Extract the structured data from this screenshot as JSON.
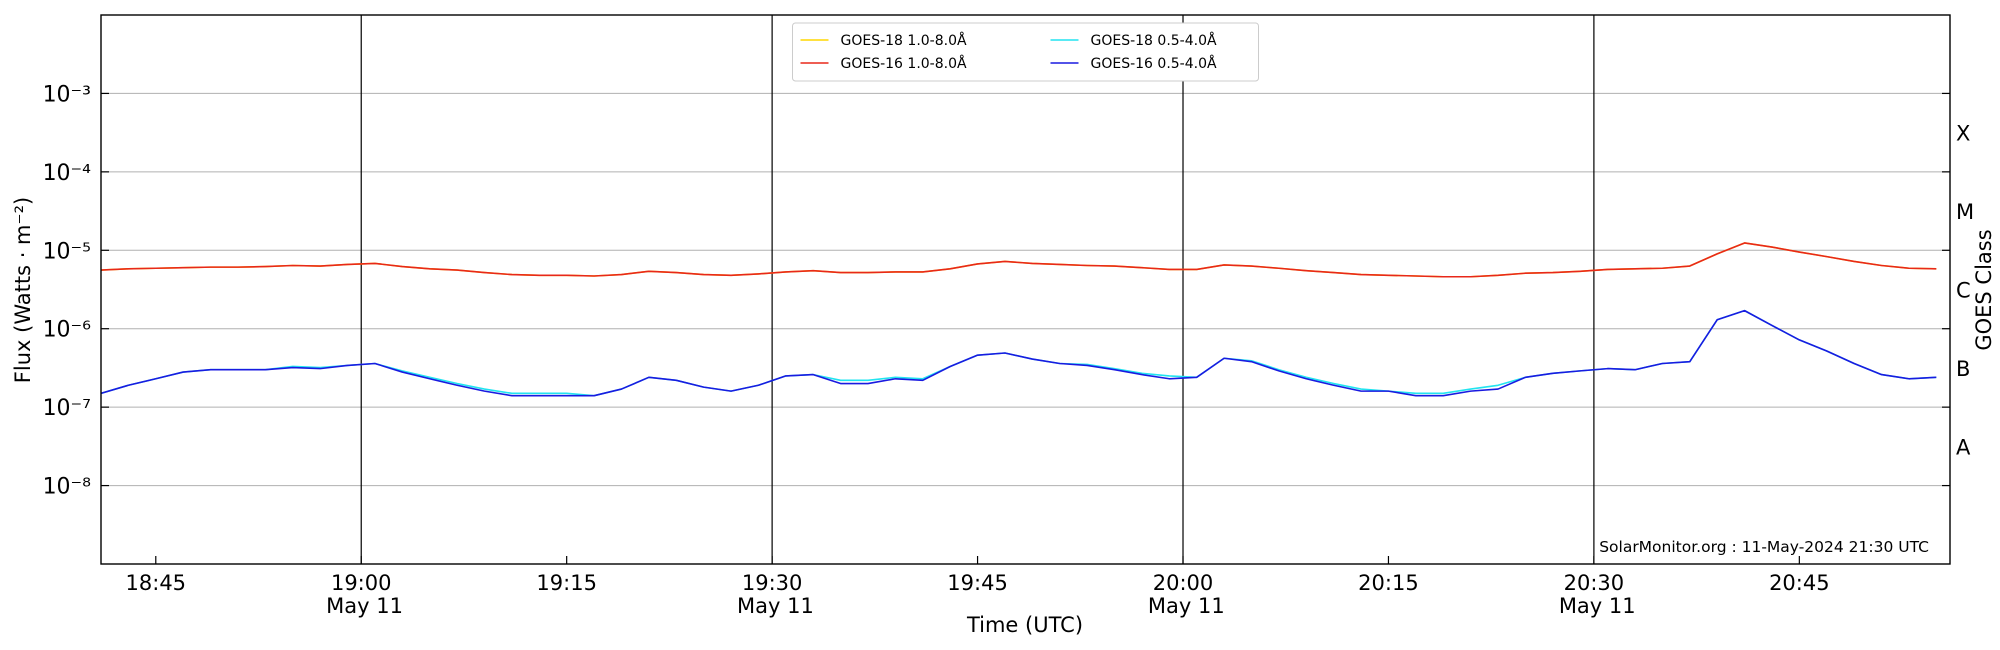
{
  "chart_data": {
    "type": "line",
    "log_scale": true,
    "grid": true,
    "xlabel": "Time (UTC)",
    "ylabel": "Flux (Watts · m⁻²)",
    "y2label": "GOES Class",
    "annotation": "SolarMonitor.org : 11-May-2024 21:30 UTC",
    "legend": "upper center",
    "legend_columns": 2,
    "xlim": [
      "18:41",
      "20:56"
    ],
    "xticks": [
      "18:45",
      {
        "value": "19:00",
        "label": "19:00\nMay 11"
      },
      "19:15",
      {
        "value": "19:30",
        "label": "19:30\nMay 11"
      },
      "19:45",
      {
        "value": "20:00",
        "label": "20:00\nMay 11"
      },
      "20:15",
      {
        "value": "20:30",
        "label": "20:30\nMay 11"
      },
      "20:45"
    ],
    "vlines": [
      "19:00",
      "19:30",
      "20:00",
      "20:30"
    ],
    "ylim": [
      1e-09,
      0.01
    ],
    "yticks": [
      {
        "value": 1e-08,
        "label": "10⁻⁸"
      },
      {
        "value": 1e-07,
        "label": "10⁻⁷"
      },
      {
        "value": 1e-06,
        "label": "10⁻⁶"
      },
      {
        "value": 1e-05,
        "label": "10⁻⁵"
      },
      {
        "value": 0.0001,
        "label": "10⁻⁴"
      },
      {
        "value": 0.001,
        "label": "10⁻³"
      }
    ],
    "goes_classes": [
      {
        "label": "A",
        "value": 1e-08
      },
      {
        "label": "B",
        "value": 1e-07
      },
      {
        "label": "C",
        "value": 1e-06
      },
      {
        "label": "M",
        "value": 1e-05
      },
      {
        "label": "X",
        "value": 0.0001
      }
    ],
    "x": [
      "18:41",
      "18:43",
      "18:45",
      "18:47",
      "18:49",
      "18:51",
      "18:53",
      "18:55",
      "18:57",
      "18:59",
      "19:01",
      "19:03",
      "19:05",
      "19:07",
      "19:09",
      "19:11",
      "19:13",
      "19:15",
      "19:17",
      "19:19",
      "19:21",
      "19:23",
      "19:25",
      "19:27",
      "19:29",
      "19:31",
      "19:33",
      "19:35",
      "19:37",
      "19:39",
      "19:41",
      "19:43",
      "19:45",
      "19:47",
      "19:49",
      "19:51",
      "19:53",
      "19:55",
      "19:57",
      "19:59",
      "20:01",
      "20:03",
      "20:05",
      "20:07",
      "20:09",
      "20:11",
      "20:13",
      "20:15",
      "20:17",
      "20:19",
      "20:21",
      "20:23",
      "20:25",
      "20:27",
      "20:29",
      "20:31",
      "20:33",
      "20:35",
      "20:37",
      "20:39",
      "20:41",
      "20:43",
      "20:45",
      "20:47",
      "20:49",
      "20:51",
      "20:53",
      "20:55"
    ],
    "series": [
      {
        "name": "GOES-18 1.0-8.0Å",
        "color": "#ffd700",
        "values": [
          5.6e-06,
          5.8e-06,
          5.9e-06,
          6e-06,
          6.1e-06,
          6.1e-06,
          6.2e-06,
          6.4e-06,
          6.3e-06,
          6.6e-06,
          6.8e-06,
          6.2e-06,
          5.8e-06,
          5.6e-06,
          5.2e-06,
          4.9e-06,
          4.8e-06,
          4.8e-06,
          4.7e-06,
          4.9e-06,
          5.4e-06,
          5.2e-06,
          4.9e-06,
          4.8e-06,
          5e-06,
          5.3e-06,
          5.5e-06,
          5.2e-06,
          5.2e-06,
          5.3e-06,
          5.3e-06,
          5.8e-06,
          6.7e-06,
          7.2e-06,
          6.8e-06,
          6.6e-06,
          6.4e-06,
          6.3e-06,
          6e-06,
          5.7e-06,
          5.7e-06,
          6.5e-06,
          6.3e-06,
          5.9e-06,
          5.5e-06,
          5.2e-06,
          4.9e-06,
          4.8e-06,
          4.7e-06,
          4.6e-06,
          4.6e-06,
          4.8e-06,
          5.1e-06,
          5.2e-06,
          5.4e-06,
          5.7e-06,
          5.8e-06,
          5.9e-06,
          6.3e-06,
          9e-06,
          1.24e-05,
          1.1e-05,
          9.5e-06,
          8.3e-06,
          7.2e-06,
          6.4e-06,
          5.9e-06,
          5.8e-06
        ]
      },
      {
        "name": "GOES-16 1.0-8.0Å",
        "color": "#e8281a",
        "values": [
          5.6e-06,
          5.8e-06,
          5.9e-06,
          6e-06,
          6.1e-06,
          6.1e-06,
          6.2e-06,
          6.4e-06,
          6.3e-06,
          6.6e-06,
          6.8e-06,
          6.2e-06,
          5.8e-06,
          5.6e-06,
          5.2e-06,
          4.9e-06,
          4.8e-06,
          4.8e-06,
          4.7e-06,
          4.9e-06,
          5.4e-06,
          5.2e-06,
          4.9e-06,
          4.8e-06,
          5e-06,
          5.3e-06,
          5.5e-06,
          5.2e-06,
          5.2e-06,
          5.3e-06,
          5.3e-06,
          5.8e-06,
          6.7e-06,
          7.2e-06,
          6.8e-06,
          6.6e-06,
          6.4e-06,
          6.3e-06,
          6e-06,
          5.7e-06,
          5.7e-06,
          6.5e-06,
          6.3e-06,
          5.9e-06,
          5.5e-06,
          5.2e-06,
          4.9e-06,
          4.8e-06,
          4.7e-06,
          4.6e-06,
          4.6e-06,
          4.8e-06,
          5.1e-06,
          5.2e-06,
          5.4e-06,
          5.7e-06,
          5.8e-06,
          5.9e-06,
          6.3e-06,
          9e-06,
          1.24e-05,
          1.1e-05,
          9.5e-06,
          8.3e-06,
          7.2e-06,
          6.4e-06,
          5.9e-06,
          5.8e-06
        ]
      },
      {
        "name": "GOES-18 0.5-4.0Å",
        "color": "#22e4f0",
        "values": [
          1.5e-07,
          1.9e-07,
          2.3e-07,
          2.8e-07,
          3e-07,
          3e-07,
          3e-07,
          3.3e-07,
          3.2e-07,
          3.4e-07,
          3.6e-07,
          2.9e-07,
          2.4e-07,
          2e-07,
          1.7e-07,
          1.5e-07,
          1.5e-07,
          1.5e-07,
          1.4e-07,
          1.7e-07,
          2.4e-07,
          2.2e-07,
          1.8e-07,
          1.6e-07,
          1.9e-07,
          2.5e-07,
          2.6e-07,
          2.2e-07,
          2.2e-07,
          2.4e-07,
          2.3e-07,
          3.3e-07,
          4.6e-07,
          4.9e-07,
          4.1e-07,
          3.6e-07,
          3.5e-07,
          3.1e-07,
          2.7e-07,
          2.5e-07,
          2.4e-07,
          4.2e-07,
          3.9e-07,
          3e-07,
          2.4e-07,
          2e-07,
          1.7e-07,
          1.6e-07,
          1.5e-07,
          1.5e-07,
          1.7e-07,
          1.9e-07,
          2.4e-07,
          2.7e-07,
          2.9e-07,
          3.1e-07,
          3e-07,
          3.6e-07,
          3.8e-07,
          1.3e-06,
          1.7e-06,
          1.1e-06,
          7.2e-07,
          5.2e-07,
          3.6e-07,
          2.6e-07,
          2.3e-07,
          2.4e-07
        ]
      },
      {
        "name": "GOES-16 0.5-4.0Å",
        "color": "#1a1ae0",
        "values": [
          1.5e-07,
          1.9e-07,
          2.3e-07,
          2.8e-07,
          3e-07,
          3e-07,
          3e-07,
          3.2e-07,
          3.1e-07,
          3.4e-07,
          3.6e-07,
          2.8e-07,
          2.3e-07,
          1.9e-07,
          1.6e-07,
          1.4e-07,
          1.4e-07,
          1.4e-07,
          1.4e-07,
          1.7e-07,
          2.4e-07,
          2.2e-07,
          1.8e-07,
          1.6e-07,
          1.9e-07,
          2.5e-07,
          2.6e-07,
          2e-07,
          2e-07,
          2.3e-07,
          2.2e-07,
          3.3e-07,
          4.6e-07,
          4.9e-07,
          4.1e-07,
          3.6e-07,
          3.4e-07,
          3e-07,
          2.6e-07,
          2.3e-07,
          2.4e-07,
          4.2e-07,
          3.8e-07,
          2.9e-07,
          2.3e-07,
          1.9e-07,
          1.6e-07,
          1.6e-07,
          1.4e-07,
          1.4e-07,
          1.6e-07,
          1.7e-07,
          2.4e-07,
          2.7e-07,
          2.9e-07,
          3.1e-07,
          3e-07,
          3.6e-07,
          3.8e-07,
          1.3e-06,
          1.7e-06,
          1.1e-06,
          7.2e-07,
          5.2e-07,
          3.6e-07,
          2.6e-07,
          2.3e-07,
          2.4e-07
        ]
      }
    ]
  }
}
